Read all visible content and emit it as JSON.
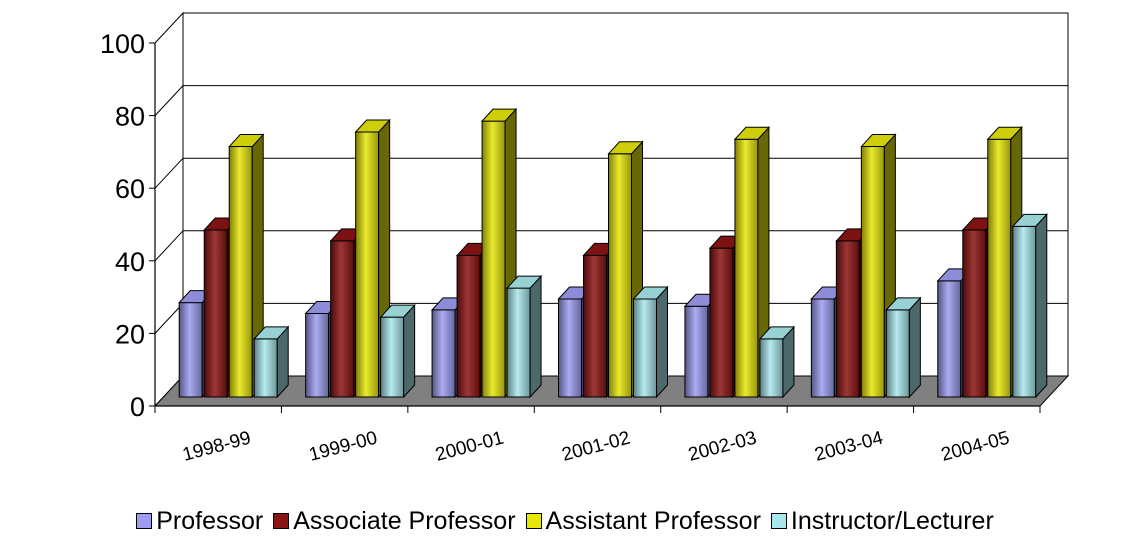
{
  "chart_data": {
    "type": "bar",
    "categories": [
      "1998-99",
      "1999-00",
      "2000-01",
      "2001-02",
      "2002-03",
      "2003-04",
      "2004-05"
    ],
    "series": [
      {
        "name": "Professor",
        "color": "#9c9cf0",
        "values": [
          26,
          23,
          24,
          27,
          25,
          27,
          32
        ]
      },
      {
        "name": "Associate Professor",
        "color": "#8a1414",
        "values": [
          46,
          43,
          39,
          39,
          41,
          43,
          46
        ]
      },
      {
        "name": "Assistant Professor",
        "color": "#e6e60a",
        "values": [
          69,
          73,
          76,
          67,
          71,
          69,
          71
        ]
      },
      {
        "name": "Instructor/Lecturer",
        "color": "#a8e8ec",
        "values": [
          16,
          22,
          30,
          27,
          16,
          24,
          47
        ]
      }
    ],
    "yticks": [
      "0",
      "20",
      "40",
      "60",
      "80",
      "100"
    ],
    "ylim": [
      0,
      100
    ],
    "grid": true,
    "legend_position": "bottom",
    "xlabel": "",
    "ylabel": "",
    "title": ""
  }
}
